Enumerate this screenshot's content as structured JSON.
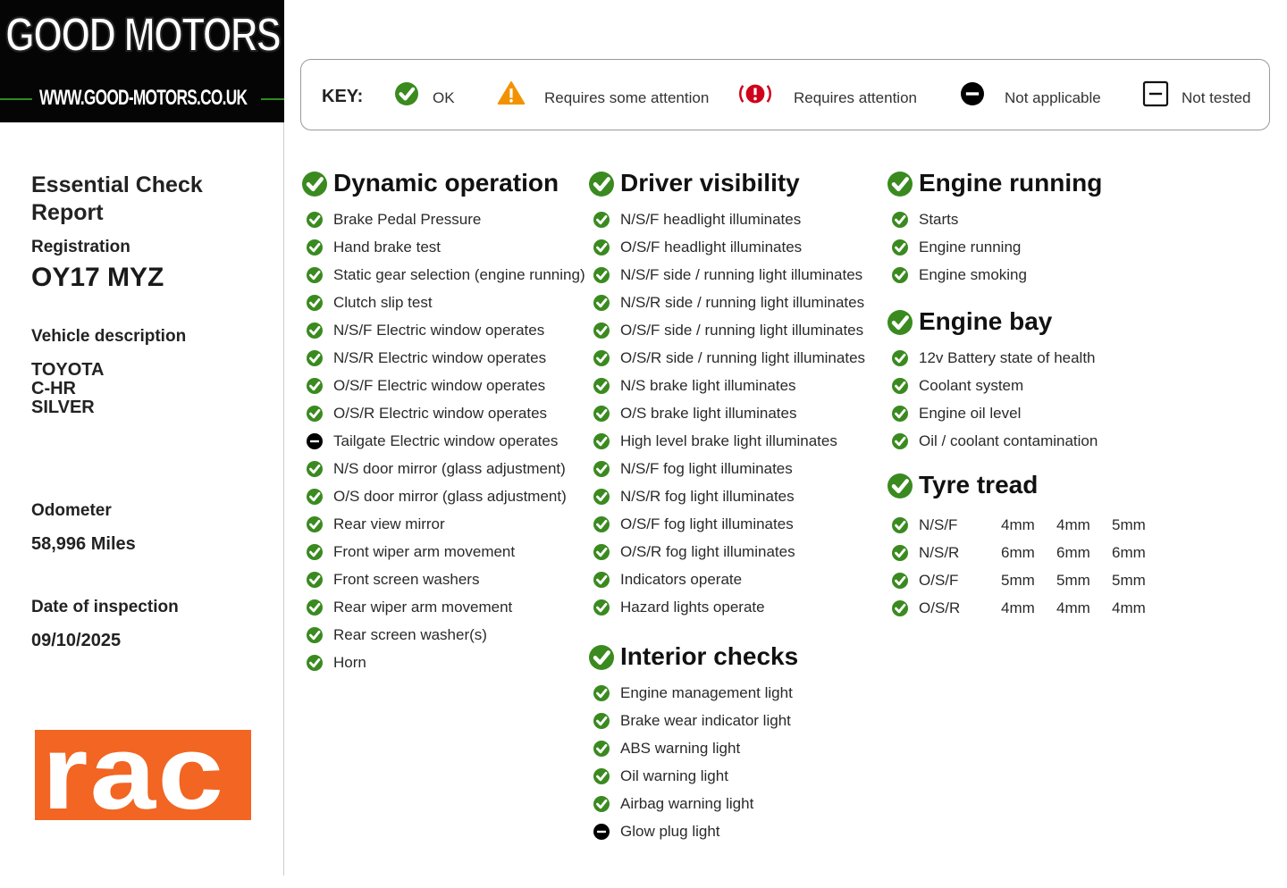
{
  "header": {
    "brand": "GOOD MOTORS",
    "website": "WWW.GOOD-MOTORS.CO.UK"
  },
  "key": {
    "label": "KEY:",
    "items": [
      "OK",
      "Requires some attention",
      "Requires attention",
      "Not applicable",
      "Not tested"
    ]
  },
  "vehicle": {
    "title": "Essential Check Report",
    "registration_label": "Registration",
    "registration": "OY17 MYZ",
    "description_label": "Vehicle description",
    "description": [
      "TOYOTA",
      "C-HR",
      "SILVER"
    ],
    "odometer_label": "Odometer",
    "odometer": "58,996 Miles",
    "date_label": "Date of inspection",
    "date": "09/10/2025"
  },
  "sections": [
    {
      "title": "Dynamic operation",
      "items": [
        {
          "text": "Brake Pedal Pressure",
          "status": "OK"
        },
        {
          "text": "Hand brake test",
          "status": "OK"
        },
        {
          "text": "Static gear selection (engine running)",
          "status": "OK"
        },
        {
          "text": "Clutch slip test",
          "status": "OK"
        },
        {
          "text": "N/S/F Electric window operates",
          "status": "OK"
        },
        {
          "text": "N/S/R Electric window operates",
          "status": "OK"
        },
        {
          "text": "O/S/F Electric window operates",
          "status": "OK"
        },
        {
          "text": "O/S/R Electric window operates",
          "status": "OK"
        },
        {
          "text": "Tailgate Electric window operates",
          "status": "Not applicable"
        },
        {
          "text": "N/S door mirror (glass adjustment)",
          "status": "OK"
        },
        {
          "text": "O/S door mirror (glass adjustment)",
          "status": "OK"
        },
        {
          "text": "Rear view mirror",
          "status": "OK"
        },
        {
          "text": "Front wiper arm movement",
          "status": "OK"
        },
        {
          "text": "Front screen washers",
          "status": "OK"
        },
        {
          "text": "Rear wiper arm movement",
          "status": "OK"
        },
        {
          "text": "Rear screen washer(s)",
          "status": "OK"
        },
        {
          "text": "Horn",
          "status": "OK"
        }
      ]
    },
    {
      "title": "Driver visibility",
      "items": [
        {
          "text": "N/S/F headlight illuminates",
          "status": "OK"
        },
        {
          "text": "O/S/F headlight illuminates",
          "status": "OK"
        },
        {
          "text": "N/S/F side / running light illuminates",
          "status": "OK"
        },
        {
          "text": "N/S/R side / running light illuminates",
          "status": "OK"
        },
        {
          "text": "O/S/F side / running light illuminates",
          "status": "OK"
        },
        {
          "text": "O/S/R side / running light illuminates",
          "status": "OK"
        },
        {
          "text": "N/S brake light illuminates",
          "status": "OK"
        },
        {
          "text": "O/S brake light illuminates",
          "status": "OK"
        },
        {
          "text": "High level brake light illuminates",
          "status": "OK"
        },
        {
          "text": "N/S/F fog light illuminates",
          "status": "OK"
        },
        {
          "text": "N/S/R fog light illuminates",
          "status": "OK"
        },
        {
          "text": "O/S/F fog light illuminates",
          "status": "OK"
        },
        {
          "text": "O/S/R fog light illuminates",
          "status": "OK"
        },
        {
          "text": "Indicators operate",
          "status": "OK"
        },
        {
          "text": "Hazard lights operate",
          "status": "OK"
        }
      ]
    },
    {
      "title": "Interior checks",
      "items": [
        {
          "text": "Engine management light",
          "status": "OK"
        },
        {
          "text": "Brake wear indicator light",
          "status": "OK"
        },
        {
          "text": "ABS warning light",
          "status": "OK"
        },
        {
          "text": "Oil warning light",
          "status": "OK"
        },
        {
          "text": "Airbag warning light",
          "status": "OK"
        },
        {
          "text": "Glow plug light",
          "status": "Not applicable"
        }
      ]
    },
    {
      "title": "Engine running",
      "items": [
        {
          "text": "Starts",
          "status": "OK"
        },
        {
          "text": "Engine running",
          "status": "OK"
        },
        {
          "text": "Engine smoking",
          "status": "OK"
        }
      ]
    },
    {
      "title": "Engine bay",
      "items": [
        {
          "text": "12v Battery state of health",
          "status": "OK"
        },
        {
          "text": "Coolant system",
          "status": "OK"
        },
        {
          "text": "Engine oil level",
          "status": "OK"
        },
        {
          "text": "Oil / coolant contamination",
          "status": "OK"
        }
      ]
    }
  ],
  "tyre_tread": {
    "title": "Tyre tread",
    "rows": [
      {
        "position": "N/S/F",
        "status": "OK",
        "readings": [
          "4mm",
          "4mm",
          "5mm"
        ]
      },
      {
        "position": "N/S/R",
        "status": "OK",
        "readings": [
          "6mm",
          "6mm",
          "6mm"
        ]
      },
      {
        "position": "O/S/F",
        "status": "OK",
        "readings": [
          "5mm",
          "5mm",
          "5mm"
        ]
      },
      {
        "position": "O/S/R",
        "status": "OK",
        "readings": [
          "4mm",
          "4mm",
          "4mm"
        ]
      }
    ]
  },
  "badge": "rac"
}
